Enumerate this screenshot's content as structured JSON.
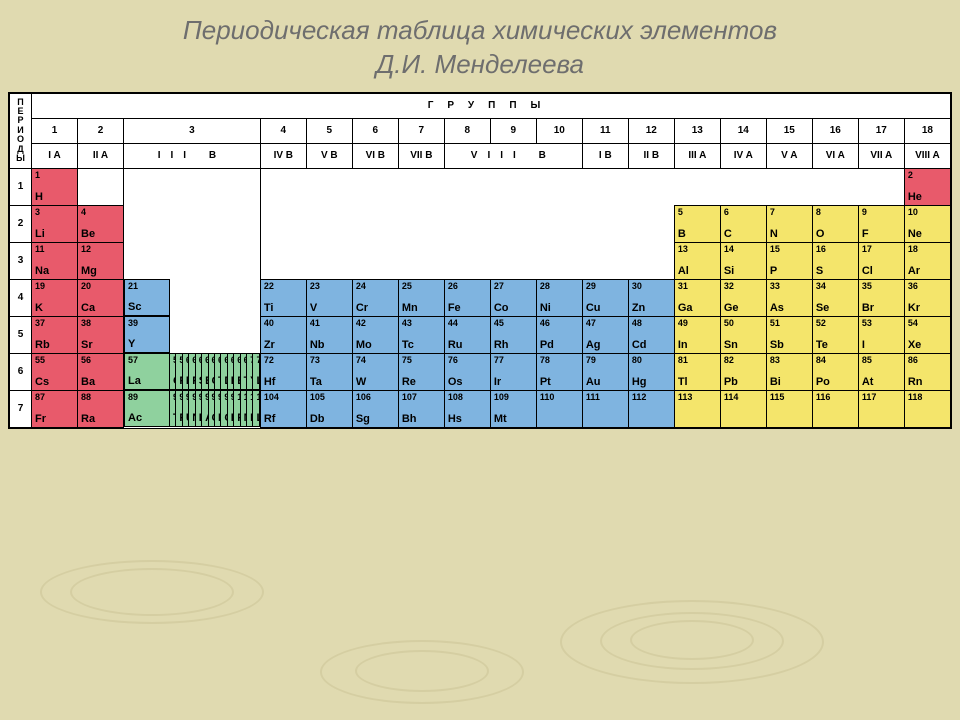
{
  "title_line1": "Периодическая таблица химических элементов",
  "title_line2": "Д.И. Менделеева",
  "side_label": "ПЕРИОДЫ",
  "header_word": "ГРУППЫ",
  "colors": {
    "red": "#e85a6b",
    "blue": "#7fb4e0",
    "green": "#8fd19e",
    "yellow": "#f4e56b",
    "white": "#ffffff"
  },
  "group_nums": [
    "1",
    "2",
    "3",
    "4",
    "5",
    "6",
    "7",
    "8",
    "9",
    "10",
    "11",
    "12",
    "13",
    "14",
    "15",
    "16",
    "17",
    "18"
  ],
  "group_labels": [
    "I A",
    "II A",
    "III B",
    "IV B",
    "V B",
    "VI B",
    "VII B",
    "VIII B",
    "I B",
    "II B",
    "III A",
    "IV A",
    "V A",
    "VI A",
    "VII A",
    "VIII A"
  ],
  "periods": [
    "1",
    "2",
    "3",
    "4",
    "5",
    "6",
    "7"
  ],
  "elements": {
    "p1": [
      {
        "z": "1",
        "s": "H",
        "c": "red"
      },
      null,
      null,
      null,
      null,
      null,
      null,
      null,
      null,
      null,
      null,
      null,
      null,
      null,
      null,
      null,
      null,
      {
        "z": "2",
        "s": "He",
        "c": "red"
      }
    ],
    "p2": [
      {
        "z": "3",
        "s": "Li",
        "c": "red"
      },
      {
        "z": "4",
        "s": "Be",
        "c": "red"
      },
      null,
      null,
      null,
      null,
      null,
      null,
      null,
      null,
      null,
      null,
      {
        "z": "5",
        "s": "B",
        "c": "yellow"
      },
      {
        "z": "6",
        "s": "C",
        "c": "yellow"
      },
      {
        "z": "7",
        "s": "N",
        "c": "yellow"
      },
      {
        "z": "8",
        "s": "O",
        "c": "yellow"
      },
      {
        "z": "9",
        "s": "F",
        "c": "yellow"
      },
      {
        "z": "10",
        "s": "Ne",
        "c": "yellow"
      }
    ],
    "p3": [
      {
        "z": "11",
        "s": "Na",
        "c": "red"
      },
      {
        "z": "12",
        "s": "Mg",
        "c": "red"
      },
      null,
      null,
      null,
      null,
      null,
      null,
      null,
      null,
      null,
      null,
      {
        "z": "13",
        "s": "Al",
        "c": "yellow"
      },
      {
        "z": "14",
        "s": "Si",
        "c": "yellow"
      },
      {
        "z": "15",
        "s": "P",
        "c": "yellow"
      },
      {
        "z": "16",
        "s": "S",
        "c": "yellow"
      },
      {
        "z": "17",
        "s": "Cl",
        "c": "yellow"
      },
      {
        "z": "18",
        "s": "Ar",
        "c": "yellow"
      }
    ],
    "p4": [
      {
        "z": "19",
        "s": "K",
        "c": "red"
      },
      {
        "z": "20",
        "s": "Ca",
        "c": "red"
      },
      {
        "z": "21",
        "s": "Sc",
        "c": "blue"
      },
      {
        "z": "22",
        "s": "Ti",
        "c": "blue"
      },
      {
        "z": "23",
        "s": "V",
        "c": "blue"
      },
      {
        "z": "24",
        "s": "Cr",
        "c": "blue"
      },
      {
        "z": "25",
        "s": "Mn",
        "c": "blue"
      },
      {
        "z": "26",
        "s": "Fe",
        "c": "blue"
      },
      {
        "z": "27",
        "s": "Co",
        "c": "blue"
      },
      {
        "z": "28",
        "s": "Ni",
        "c": "blue"
      },
      {
        "z": "29",
        "s": "Cu",
        "c": "blue"
      },
      {
        "z": "30",
        "s": "Zn",
        "c": "blue"
      },
      {
        "z": "31",
        "s": "Ga",
        "c": "yellow"
      },
      {
        "z": "32",
        "s": "Ge",
        "c": "yellow"
      },
      {
        "z": "33",
        "s": "As",
        "c": "yellow"
      },
      {
        "z": "34",
        "s": "Se",
        "c": "yellow"
      },
      {
        "z": "35",
        "s": "Br",
        "c": "yellow"
      },
      {
        "z": "36",
        "s": "Kr",
        "c": "yellow"
      }
    ],
    "p5": [
      {
        "z": "37",
        "s": "Rb",
        "c": "red"
      },
      {
        "z": "38",
        "s": "Sr",
        "c": "red"
      },
      {
        "z": "39",
        "s": "Y",
        "c": "blue"
      },
      {
        "z": "40",
        "s": "Zr",
        "c": "blue"
      },
      {
        "z": "41",
        "s": "Nb",
        "c": "blue"
      },
      {
        "z": "42",
        "s": "Mo",
        "c": "blue"
      },
      {
        "z": "43",
        "s": "Tc",
        "c": "blue"
      },
      {
        "z": "44",
        "s": "Ru",
        "c": "blue"
      },
      {
        "z": "45",
        "s": "Rh",
        "c": "blue"
      },
      {
        "z": "46",
        "s": "Pd",
        "c": "blue"
      },
      {
        "z": "47",
        "s": "Ag",
        "c": "blue"
      },
      {
        "z": "48",
        "s": "Cd",
        "c": "blue"
      },
      {
        "z": "49",
        "s": "In",
        "c": "yellow"
      },
      {
        "z": "50",
        "s": "Sn",
        "c": "yellow"
      },
      {
        "z": "51",
        "s": "Sb",
        "c": "yellow"
      },
      {
        "z": "52",
        "s": "Te",
        "c": "yellow"
      },
      {
        "z": "53",
        "s": "I",
        "c": "yellow"
      },
      {
        "z": "54",
        "s": "Xe",
        "c": "yellow"
      }
    ],
    "p6": [
      {
        "z": "55",
        "s": "Cs",
        "c": "red"
      },
      {
        "z": "56",
        "s": "Ba",
        "c": "red"
      },
      {
        "z": "57",
        "s": "La",
        "c": "green"
      },
      {
        "z": "72",
        "s": "Hf",
        "c": "blue"
      },
      {
        "z": "73",
        "s": "Ta",
        "c": "blue"
      },
      {
        "z": "74",
        "s": "W",
        "c": "blue"
      },
      {
        "z": "75",
        "s": "Re",
        "c": "blue"
      },
      {
        "z": "76",
        "s": "Os",
        "c": "blue"
      },
      {
        "z": "77",
        "s": "Ir",
        "c": "blue"
      },
      {
        "z": "78",
        "s": "Pt",
        "c": "blue"
      },
      {
        "z": "79",
        "s": "Au",
        "c": "blue"
      },
      {
        "z": "80",
        "s": "Hg",
        "c": "blue"
      },
      {
        "z": "81",
        "s": "Tl",
        "c": "yellow"
      },
      {
        "z": "82",
        "s": "Pb",
        "c": "yellow"
      },
      {
        "z": "83",
        "s": "Bi",
        "c": "yellow"
      },
      {
        "z": "84",
        "s": "Po",
        "c": "yellow"
      },
      {
        "z": "85",
        "s": "At",
        "c": "yellow"
      },
      {
        "z": "86",
        "s": "Rn",
        "c": "yellow"
      }
    ],
    "p7": [
      {
        "z": "87",
        "s": "Fr",
        "c": "red"
      },
      {
        "z": "88",
        "s": "Ra",
        "c": "red"
      },
      {
        "z": "89",
        "s": "Ac",
        "c": "green"
      },
      {
        "z": "104",
        "s": "Rf",
        "c": "blue"
      },
      {
        "z": "105",
        "s": "Db",
        "c": "blue"
      },
      {
        "z": "106",
        "s": "Sg",
        "c": "blue"
      },
      {
        "z": "107",
        "s": "Bh",
        "c": "blue"
      },
      {
        "z": "108",
        "s": "Hs",
        "c": "blue"
      },
      {
        "z": "109",
        "s": "Mt",
        "c": "blue"
      },
      {
        "z": "110",
        "s": "",
        "c": "blue"
      },
      {
        "z": "111",
        "s": "",
        "c": "blue"
      },
      {
        "z": "112",
        "s": "",
        "c": "blue"
      },
      {
        "z": "113",
        "s": "",
        "c": "yellow"
      },
      {
        "z": "114",
        "s": "",
        "c": "yellow"
      },
      {
        "z": "115",
        "s": "",
        "c": "yellow"
      },
      {
        "z": "116",
        "s": "",
        "c": "yellow"
      },
      {
        "z": "117",
        "s": "",
        "c": "yellow"
      },
      {
        "z": "118",
        "s": "",
        "c": "yellow"
      }
    ]
  },
  "lanth": [
    {
      "z": "58",
      "s": "Ce"
    },
    {
      "z": "59",
      "s": "Pr"
    },
    {
      "z": "60",
      "s": "Nd"
    },
    {
      "z": "61",
      "s": "Pm"
    },
    {
      "z": "62",
      "s": "Sm"
    },
    {
      "z": "63",
      "s": "Eu"
    },
    {
      "z": "64",
      "s": "Gd"
    },
    {
      "z": "65",
      "s": "Tb"
    },
    {
      "z": "66",
      "s": "Dy"
    },
    {
      "z": "67",
      "s": "Ho"
    },
    {
      "z": "68",
      "s": "Er"
    },
    {
      "z": "69",
      "s": "Tm"
    },
    {
      "z": "70",
      "s": "Yb"
    },
    {
      "z": "71",
      "s": "Lu"
    }
  ],
  "actin": [
    {
      "z": "90",
      "s": "Th"
    },
    {
      "z": "91",
      "s": "Pa"
    },
    {
      "z": "92",
      "s": "U"
    },
    {
      "z": "93",
      "s": "Np"
    },
    {
      "z": "94",
      "s": "Pu"
    },
    {
      "z": "95",
      "s": "Am"
    },
    {
      "z": "96",
      "s": "Cm"
    },
    {
      "z": "97",
      "s": "Bk"
    },
    {
      "z": "98",
      "s": "Cf"
    },
    {
      "z": "99",
      "s": "Es"
    },
    {
      "z": "100",
      "s": "Fm"
    },
    {
      "z": "101",
      "s": "Md"
    },
    {
      "z": "102",
      "s": "No"
    },
    {
      "z": "103",
      "s": "Lr"
    }
  ]
}
